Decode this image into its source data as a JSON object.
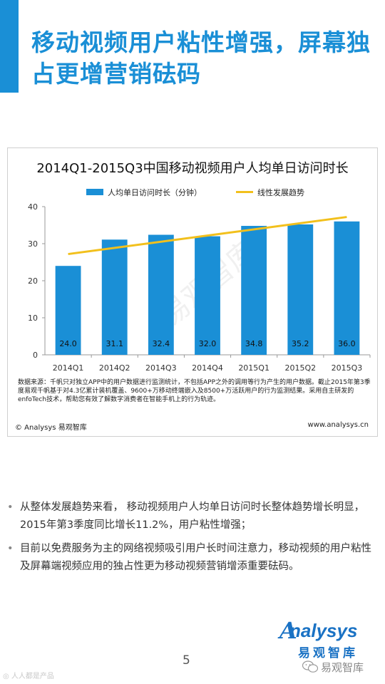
{
  "page": {
    "title": "移动视频用户粘性增强，屏幕独占更增营销砝码",
    "page_number": "5",
    "watermark_left": "◎ 人人都是产品",
    "wechat_account": "易观智库"
  },
  "colors": {
    "brand_blue": "#1a8fd6",
    "bar_blue": "#1a8fd6",
    "trend_yellow": "#f2c01c"
  },
  "chart_data": {
    "type": "bar",
    "title": "2014Q1-2015Q3中国移动视频用户人均单日访问时长",
    "categories": [
      "2014Q1",
      "2014Q2",
      "2014Q3",
      "2014Q4",
      "2015Q1",
      "2015Q2",
      "2015Q3"
    ],
    "series": [
      {
        "name": "人均单日访问时长（分钟）",
        "values": [
          24.0,
          31.1,
          32.4,
          32.0,
          34.8,
          35.2,
          36.0
        ]
      }
    ],
    "value_labels": [
      "24.0",
      "31.1",
      "32.4",
      "32.0",
      "34.8",
      "35.2",
      "36.0"
    ],
    "trend": {
      "name": "线性发展趋势",
      "start": 27.2,
      "end": 37.2
    },
    "yticks": [
      0,
      10,
      20,
      30,
      40
    ],
    "ylim": [
      0,
      40
    ],
    "legend": "top",
    "grid": false,
    "watermark": "易观智库",
    "note": "数据来源：千帆只对独立APP中的用户数据进行监测统计，不包括APP之外的调用等行为产生的用户数据。截止2015年第3季度易观千帆基于对4.3亿累计装机覆盖、9600+万移动终端嵌入及8500+万活跃用户的行为监测结果。采用自主研发的enfoTech技术，帮助您有效了解数字消费者在智能手机上的行为轨迹。",
    "copyright": "© Analysys 易观智库",
    "source_url": "www.analysys.cn"
  },
  "bullets": [
    "从整体发展趋势来看， 移动视频用户人均单日访问时长整体趋势增长明显，2015年第3季度同比增长11.2%，用户粘性增强；",
    "目前以免费服务为主的网络视频吸引用户长时间注意力，移动视频的用户粘性及屏幕端视频应用的独占性更为移动视频营销增添重要砝码。"
  ],
  "logo": {
    "brand": "nalysys",
    "initial": "A",
    "cn": "易观智库",
    "icon": "analysys-logo"
  }
}
